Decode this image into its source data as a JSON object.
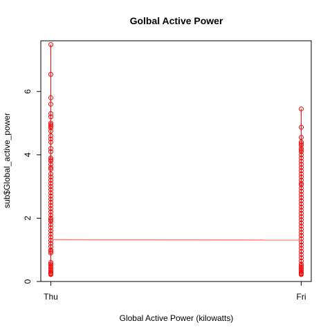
{
  "chart_data": {
    "type": "scatter",
    "title": "Golbal Active Power",
    "xlabel": "Global Active Power (kilowatts)",
    "ylabel": "sub$Global_active_power",
    "categories": [
      "Thu",
      "Fri"
    ],
    "xlim": [
      -0.04,
      1.04
    ],
    "ylim": [
      0,
      7.6
    ],
    "yticks": [
      0,
      2,
      4,
      6
    ],
    "grid": false,
    "legend": "none",
    "colors": {
      "points": "#ff0000",
      "line": "#ff8080",
      "axis": "#000000"
    },
    "series": [
      {
        "x": 0,
        "values": [
          7.48,
          6.54,
          5.8,
          5.6,
          5.3,
          5.2,
          5.0,
          4.95,
          4.9,
          4.85,
          4.75,
          4.6,
          4.5,
          4.4,
          4.2,
          4.1,
          3.9,
          3.85,
          3.8,
          3.7,
          3.6,
          3.55,
          3.4,
          3.3,
          3.2,
          3.1,
          3.0,
          2.9,
          2.8,
          2.7,
          2.6,
          2.5,
          2.4,
          2.3,
          2.2,
          2.1,
          2.0,
          1.95,
          1.9,
          1.8,
          1.7,
          1.6,
          1.5,
          1.4,
          1.3,
          1.2,
          1.1,
          1.0,
          0.95,
          0.9,
          0.6,
          0.55,
          0.5,
          0.45,
          0.4,
          0.35,
          0.3,
          0.26,
          0.24,
          0.22
        ]
      },
      {
        "x": 1,
        "values": [
          5.45,
          4.87,
          4.55,
          4.4,
          4.35,
          4.3,
          4.2,
          4.15,
          4.1,
          4.0,
          3.9,
          3.8,
          3.7,
          3.6,
          3.5,
          3.4,
          3.3,
          3.2,
          3.1,
          3.05,
          2.95,
          2.85,
          2.75,
          2.65,
          2.55,
          2.45,
          2.35,
          2.25,
          2.15,
          2.05,
          1.95,
          1.85,
          1.75,
          1.65,
          1.55,
          1.45,
          1.35,
          1.25,
          1.15,
          1.05,
          0.95,
          0.85,
          0.75,
          0.65,
          0.55,
          0.5,
          0.45,
          0.4,
          0.35,
          0.3,
          0.26,
          0.24,
          0.22
        ]
      }
    ],
    "trend_line": {
      "x": [
        0,
        1
      ],
      "y": [
        1.32,
        1.31
      ]
    }
  }
}
